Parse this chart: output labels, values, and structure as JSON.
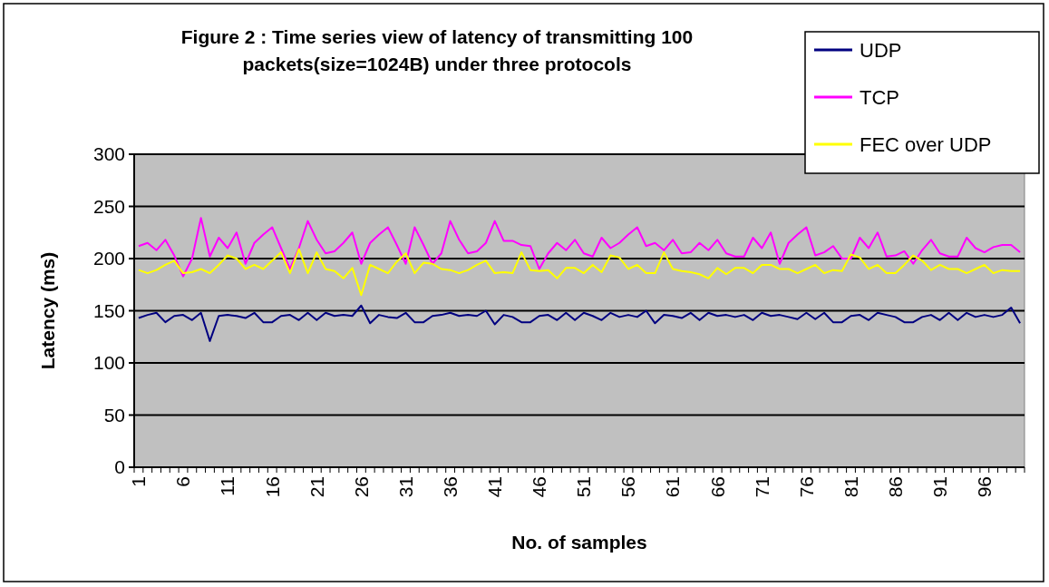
{
  "chart_data": {
    "type": "line",
    "title": "Figure 2 : Time series view of latency of transmitting 100 packets(size=1024B) under three protocols",
    "xlabel": "No. of samples",
    "ylabel": "Latency (ms)",
    "categories": [
      "1",
      null,
      null,
      null,
      null,
      "6",
      null,
      null,
      null,
      null,
      "11",
      null,
      null,
      null,
      null,
      "16",
      null,
      null,
      null,
      null,
      "21",
      null,
      null,
      null,
      null,
      "26",
      null,
      null,
      null,
      null,
      "31",
      null,
      null,
      null,
      null,
      "36",
      null,
      null,
      null,
      null,
      "41",
      null,
      null,
      null,
      null,
      "46",
      null,
      null,
      null,
      null,
      "51",
      null,
      null,
      null,
      null,
      "56",
      null,
      null,
      null,
      null,
      "61",
      null,
      null,
      null,
      null,
      "66",
      null,
      null,
      null,
      null,
      "71",
      null,
      null,
      null,
      null,
      "76",
      null,
      null,
      null,
      null,
      "81",
      null,
      null,
      null,
      null,
      "86",
      null,
      null,
      null,
      null,
      "91",
      null,
      null,
      null,
      null,
      "96",
      null,
      null,
      null,
      null
    ],
    "series": [
      {
        "name": "UDP",
        "color": "#000080",
        "values": [
          143,
          146,
          148,
          139,
          145,
          146,
          141,
          148,
          121,
          145,
          146,
          145,
          143,
          148,
          139,
          139,
          145,
          146,
          141,
          148,
          141,
          148,
          145,
          146,
          145,
          155,
          138,
          146,
          144,
          143,
          148,
          139,
          139,
          145,
          146,
          148,
          145,
          146,
          145,
          150,
          137,
          146,
          144,
          139,
          139,
          145,
          146,
          141,
          148,
          141,
          148,
          145,
          141,
          148,
          144,
          146,
          144,
          150,
          138,
          146,
          145,
          143,
          148,
          141,
          148,
          145,
          146,
          144,
          146,
          141,
          148,
          145,
          146,
          144,
          142,
          148,
          142,
          148,
          139,
          139,
          145,
          146,
          141,
          148,
          146,
          144,
          139,
          139,
          144,
          146,
          141,
          148,
          141,
          148,
          144,
          146,
          144,
          146,
          153,
          138
        ]
      },
      {
        "name": "TCP",
        "color": "#ff00ff",
        "values": [
          212,
          215,
          208,
          218,
          203,
          183,
          200,
          239,
          202,
          220,
          210,
          225,
          195,
          215,
          223,
          230,
          210,
          190,
          210,
          236,
          218,
          205,
          207,
          215,
          225,
          195,
          215,
          223,
          230,
          213,
          195,
          230,
          213,
          195,
          205,
          236,
          218,
          205,
          207,
          215,
          236,
          217,
          217,
          213,
          212,
          190,
          205,
          215,
          208,
          218,
          205,
          202,
          220,
          210,
          215,
          223,
          230,
          212,
          215,
          208,
          218,
          205,
          206,
          215,
          208,
          218,
          205,
          202,
          202,
          220,
          210,
          225,
          195,
          215,
          223,
          230,
          203,
          206,
          212,
          200,
          200,
          220,
          210,
          225,
          202,
          203,
          207,
          195,
          208,
          218,
          205,
          202,
          202,
          220,
          210,
          206,
          211,
          213,
          213,
          206
        ]
      },
      {
        "name": "FEC over UDP",
        "color": "#ffff00",
        "values": [
          189,
          186,
          189,
          194,
          198,
          186,
          187,
          190,
          186,
          194,
          203,
          200,
          190,
          194,
          190,
          198,
          206,
          186,
          209,
          186,
          206,
          190,
          188,
          181,
          191,
          165,
          194,
          190,
          186,
          197,
          205,
          186,
          196,
          195,
          190,
          189,
          186,
          189,
          194,
          198,
          186,
          187,
          186,
          206,
          189,
          188,
          189,
          181,
          191,
          191,
          186,
          194,
          187,
          203,
          201,
          190,
          194,
          186,
          186,
          206,
          190,
          188,
          187,
          185,
          181,
          191,
          185,
          191,
          191,
          186,
          194,
          194,
          190,
          190,
          186,
          190,
          194,
          186,
          189,
          188,
          204,
          201,
          190,
          194,
          186,
          186,
          194,
          203,
          198,
          189,
          194,
          190,
          190,
          186,
          190,
          194,
          186,
          189,
          188,
          188
        ]
      }
    ],
    "ylim": [
      0,
      300
    ],
    "yticks": [
      0,
      50,
      100,
      150,
      200,
      250,
      300
    ],
    "grid": "y",
    "legend": "top right",
    "marker": "none",
    "line_style": "solid"
  }
}
